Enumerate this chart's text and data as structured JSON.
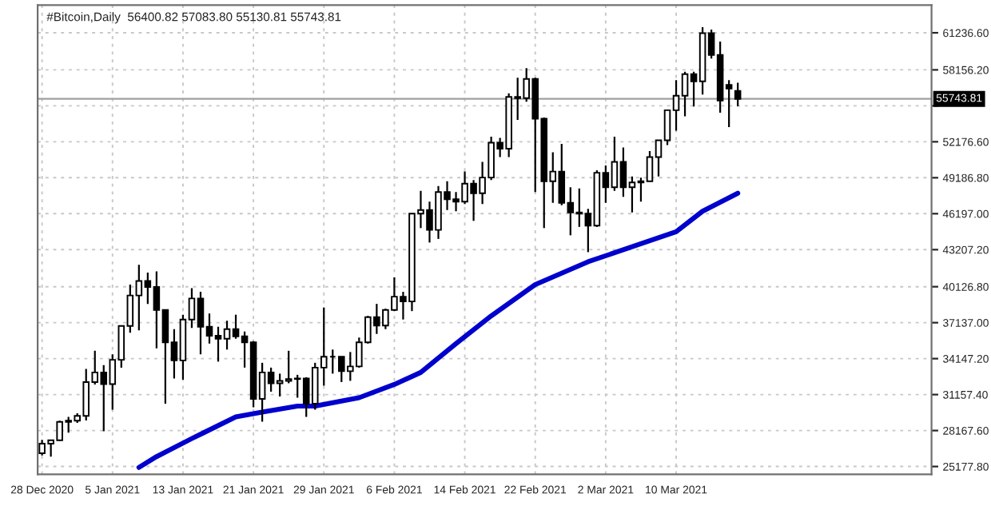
{
  "chart_data": {
    "type": "candlestick",
    "title": "#Bitcoin,Daily  56400.82 57083.80 55130.81 55743.81",
    "x": [
      "2020-12-28",
      "2020-12-29",
      "2020-12-30",
      "2020-12-31",
      "2021-01-01",
      "2021-01-02",
      "2021-01-03",
      "2021-01-04",
      "2021-01-05",
      "2021-01-06",
      "2021-01-07",
      "2021-01-08",
      "2021-01-09",
      "2021-01-10",
      "2021-01-11",
      "2021-01-12",
      "2021-01-13",
      "2021-01-14",
      "2021-01-15",
      "2021-01-16",
      "2021-01-17",
      "2021-01-18",
      "2021-01-19",
      "2021-01-20",
      "2021-01-21",
      "2021-01-22",
      "2021-01-23",
      "2021-01-24",
      "2021-01-25",
      "2021-01-26",
      "2021-01-27",
      "2021-01-28",
      "2021-01-29",
      "2021-01-30",
      "2021-01-31",
      "2021-02-01",
      "2021-02-02",
      "2021-02-03",
      "2021-02-04",
      "2021-02-05",
      "2021-02-06",
      "2021-02-07",
      "2021-02-08",
      "2021-02-09",
      "2021-02-10",
      "2021-02-11",
      "2021-02-12",
      "2021-02-13",
      "2021-02-14",
      "2021-02-15",
      "2021-02-16",
      "2021-02-17",
      "2021-02-18",
      "2021-02-19",
      "2021-02-20",
      "2021-02-21",
      "2021-02-22",
      "2021-02-23",
      "2021-02-24",
      "2021-02-25",
      "2021-02-26",
      "2021-02-27",
      "2021-02-28",
      "2021-03-01",
      "2021-03-02",
      "2021-03-03",
      "2021-03-04",
      "2021-03-05",
      "2021-03-06",
      "2021-03-07",
      "2021-03-08",
      "2021-03-09",
      "2021-03-10",
      "2021-03-11",
      "2021-03-12",
      "2021-03-13",
      "2021-03-14",
      "2021-03-15",
      "2021-03-16",
      "2021-03-17"
    ],
    "ohlc": [
      [
        26280,
        27390,
        26100,
        27080
      ],
      [
        27080,
        27370,
        25990,
        27360
      ],
      [
        27360,
        28990,
        27320,
        28890
      ],
      [
        28890,
        29300,
        28000,
        28990
      ],
      [
        28990,
        29600,
        28800,
        29390
      ],
      [
        29390,
        33300,
        29000,
        32200
      ],
      [
        32200,
        34800,
        32000,
        33000
      ],
      [
        33000,
        33600,
        28100,
        32030
      ],
      [
        32030,
        34500,
        29900,
        34050
      ],
      [
        34050,
        36900,
        33400,
        36860
      ],
      [
        36860,
        40300,
        36300,
        39400
      ],
      [
        39400,
        41950,
        36500,
        40600
      ],
      [
        40600,
        41300,
        38700,
        40100
      ],
      [
        40100,
        41400,
        35000,
        38200
      ],
      [
        38200,
        38200,
        30400,
        35500
      ],
      [
        35500,
        36600,
        32500,
        34000
      ],
      [
        34000,
        37800,
        32400,
        37400
      ],
      [
        37400,
        40000,
        36700,
        39150
      ],
      [
        39150,
        39700,
        34500,
        36800
      ],
      [
        36800,
        37900,
        35400,
        36050
      ],
      [
        36050,
        36800,
        33900,
        35800
      ],
      [
        35800,
        37300,
        34900,
        36600
      ],
      [
        36600,
        37800,
        35800,
        36000
      ],
      [
        36000,
        36400,
        33400,
        35500
      ],
      [
        35500,
        35600,
        30100,
        30800
      ],
      [
        30800,
        33800,
        28900,
        33000
      ],
      [
        33000,
        33400,
        31400,
        32100
      ],
      [
        32100,
        32900,
        31000,
        32300
      ],
      [
        32300,
        34800,
        32100,
        32450
      ],
      [
        32450,
        32800,
        30900,
        32500
      ],
      [
        32500,
        32600,
        29300,
        30400
      ],
      [
        30400,
        33800,
        29900,
        33400
      ],
      [
        33400,
        38400,
        31900,
        34300
      ],
      [
        34300,
        34900,
        32900,
        34300
      ],
      [
        34300,
        34300,
        32200,
        33100
      ],
      [
        33100,
        34700,
        32300,
        33500
      ],
      [
        33500,
        35900,
        33400,
        35500
      ],
      [
        35500,
        37700,
        35400,
        37600
      ],
      [
        37600,
        38700,
        36200,
        36900
      ],
      [
        36900,
        38300,
        36600,
        38200
      ],
      [
        38200,
        40900,
        38100,
        39300
      ],
      [
        39300,
        39700,
        37400,
        38900
      ],
      [
        38900,
        46200,
        38100,
        46200
      ],
      [
        46200,
        48100,
        45000,
        46500
      ],
      [
        46500,
        47200,
        43800,
        44850
      ],
      [
        44850,
        48500,
        44100,
        48000
      ],
      [
        48000,
        48900,
        46500,
        47400
      ],
      [
        47400,
        48000,
        46400,
        47200
      ],
      [
        47200,
        49700,
        47000,
        48700
      ],
      [
        48700,
        49000,
        45600,
        47900
      ],
      [
        47900,
        50500,
        47000,
        49200
      ],
      [
        49200,
        52600,
        49000,
        52100
      ],
      [
        52100,
        52500,
        50900,
        51600
      ],
      [
        51600,
        56200,
        50900,
        55900
      ],
      [
        55900,
        57500,
        54000,
        55800
      ],
      [
        55800,
        58300,
        55500,
        57400
      ],
      [
        57400,
        57500,
        48000,
        54100
      ],
      [
        54100,
        54200,
        45000,
        48900
      ],
      [
        48900,
        51300,
        47100,
        49700
      ],
      [
        49700,
        52000,
        46900,
        47100
      ],
      [
        47100,
        48400,
        44400,
        46300
      ],
      [
        46300,
        48300,
        45100,
        46200
      ],
      [
        46200,
        46600,
        43000,
        45200
      ],
      [
        45200,
        49800,
        45100,
        49600
      ],
      [
        49600,
        50200,
        47100,
        48400
      ],
      [
        48400,
        52600,
        48100,
        50500
      ],
      [
        50500,
        51700,
        47600,
        48400
      ],
      [
        48400,
        49300,
        46300,
        48800
      ],
      [
        48800,
        49200,
        47200,
        48900
      ],
      [
        48900,
        51400,
        48900,
        50900
      ],
      [
        50900,
        52300,
        49300,
        52300
      ],
      [
        52300,
        54800,
        51900,
        54800
      ],
      [
        54800,
        57300,
        53100,
        56000
      ],
      [
        56000,
        58000,
        54300,
        57800
      ],
      [
        57800,
        58000,
        55100,
        57200
      ],
      [
        57200,
        61700,
        56100,
        61200
      ],
      [
        61200,
        61500,
        59100,
        59400
      ],
      [
        59400,
        60500,
        54600,
        55600
      ],
      [
        56900,
        57300,
        53400,
        56600
      ],
      [
        56400.82,
        57083.8,
        55130.81,
        55743.81
      ]
    ],
    "series": [
      {
        "type": "line",
        "color": "#0000cd",
        "x": [
          "2021-01-08",
          "2021-01-10",
          "2021-01-14",
          "2021-01-19",
          "2021-01-22",
          "2021-01-26",
          "2021-01-28",
          "2021-02-02",
          "2021-02-06",
          "2021-02-09",
          "2021-02-13",
          "2021-02-17",
          "2021-02-22",
          "2021-02-28",
          "2021-03-06",
          "2021-03-10",
          "2021-03-13",
          "2021-03-17"
        ],
        "values": [
          25100,
          26000,
          27500,
          29300,
          29700,
          30200,
          30200,
          30900,
          32000,
          33000,
          35400,
          37700,
          40300,
          42200,
          43700,
          44700,
          46400,
          47900
        ]
      }
    ],
    "ref_lines": [
      {
        "axis": "y",
        "value": 55743.81,
        "label": "55743.81",
        "color": "#a0a0a0"
      }
    ],
    "xlim": [
      "2020-12-27T12:00",
      "2021-04-08"
    ],
    "xticks": [
      {
        "value": "2020-12-28",
        "label": "28 Dec 2020"
      },
      {
        "value": "2021-01-05",
        "label": "5 Jan 2021"
      },
      {
        "value": "2021-01-13",
        "label": "13 Jan 2021"
      },
      {
        "value": "2021-01-21",
        "label": "21 Jan 2021"
      },
      {
        "value": "2021-01-29",
        "label": "29 Jan 2021"
      },
      {
        "value": "2021-02-06",
        "label": "6 Feb 2021"
      },
      {
        "value": "2021-02-14",
        "label": "14 Feb 2021"
      },
      {
        "value": "2021-02-22",
        "label": "22 Feb 2021"
      },
      {
        "value": "2021-03-02",
        "label": "2 Mar 2021"
      },
      {
        "value": "2021-03-10",
        "label": "10 Mar 2021"
      }
    ],
    "ylim": [
      24530,
      63540
    ],
    "yticks": [
      {
        "value": 25177.8,
        "label": "25177.80"
      },
      {
        "value": 28167.6,
        "label": "28167.60"
      },
      {
        "value": 31157.4,
        "label": "31157.40"
      },
      {
        "value": 34147.2,
        "label": "34147.20"
      },
      {
        "value": 37137.0,
        "label": "37137.00"
      },
      {
        "value": 40126.8,
        "label": "40126.80"
      },
      {
        "value": 43207.2,
        "label": "43207.20"
      },
      {
        "value": 46197.0,
        "label": "46197.00"
      },
      {
        "value": 49186.8,
        "label": "49186.80"
      },
      {
        "value": 52176.6,
        "label": "52176.60"
      },
      {
        "value": 55166.4,
        "label": null
      },
      {
        "value": 58156.2,
        "label": "58156.20"
      },
      {
        "value": 61236.6,
        "label": "61236.60"
      }
    ],
    "grid": true
  }
}
